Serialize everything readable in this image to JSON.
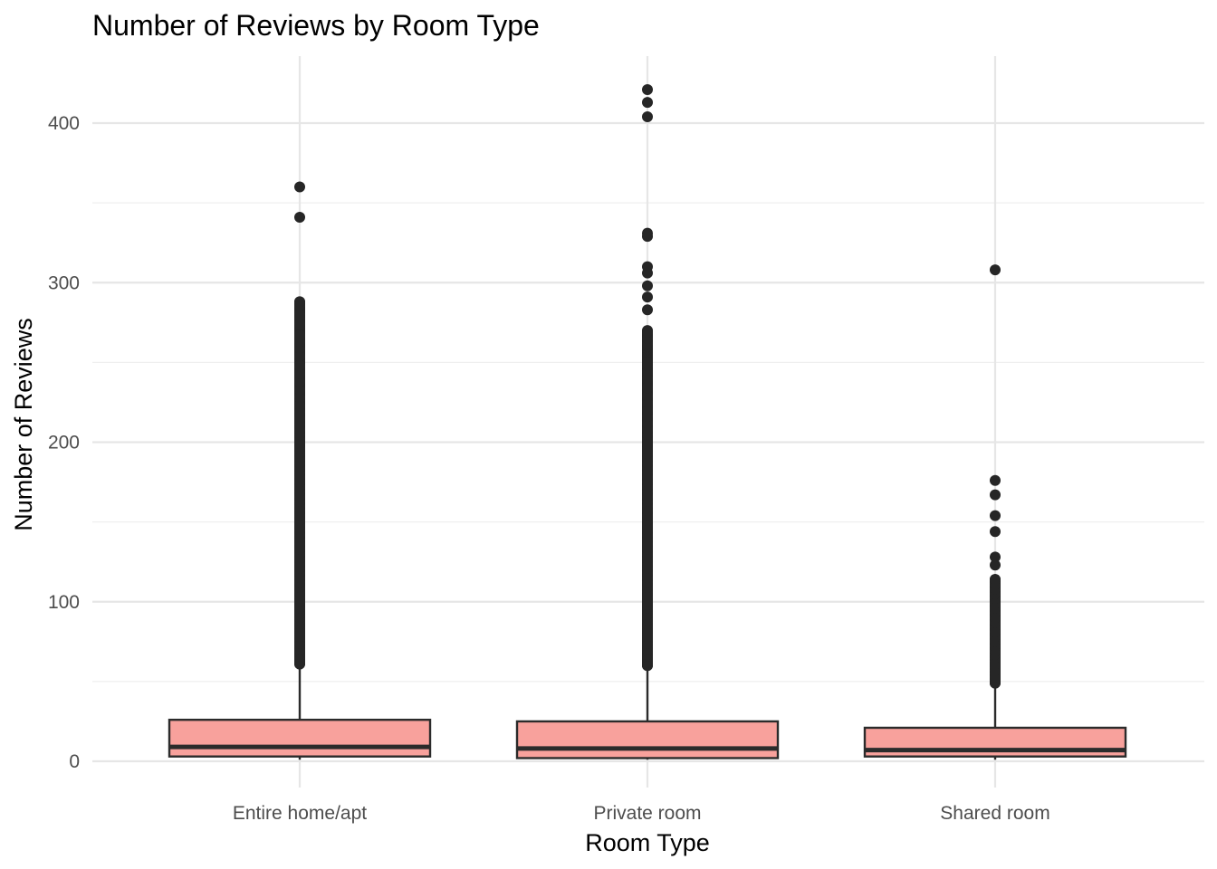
{
  "chart_data": {
    "type": "box",
    "title": "Number of Reviews by Room Type",
    "xlabel": "Room Type",
    "ylabel": "Number of Reviews",
    "ylim": [
      -23,
      442
    ],
    "yticks": [
      0,
      100,
      200,
      300,
      400
    ],
    "grid": true,
    "legend": "none",
    "colors": {
      "box_fill": "#f8a19c",
      "box_stroke": "#2b2b2b",
      "outlier": "#262626",
      "grid": "#e6e6e6"
    },
    "categories": [
      "Entire home/apt",
      "Private room",
      "Shared room"
    ],
    "boxes": [
      {
        "category": "Entire home/apt",
        "q1": 3,
        "median": 9,
        "q3": 26,
        "whisker_low": 1,
        "whisker_high": 60,
        "outlier_range": [
          61,
          288
        ],
        "outliers": [
          61,
          62,
          63,
          64,
          65,
          66,
          67,
          68,
          69,
          70,
          72,
          74,
          76,
          78,
          80,
          82,
          84,
          86,
          88,
          90,
          92,
          94,
          96,
          98,
          100,
          103,
          106,
          109,
          112,
          115,
          118,
          121,
          124,
          127,
          130,
          133,
          136,
          139,
          142,
          145,
          148,
          151,
          154,
          157,
          160,
          163,
          166,
          169,
          172,
          175,
          178,
          181,
          184,
          187,
          190,
          193,
          196,
          199,
          202,
          205,
          208,
          211,
          215,
          219,
          223,
          228,
          233,
          238,
          243,
          248,
          254,
          259,
          263,
          267,
          274,
          278,
          280,
          286,
          288,
          341,
          360
        ]
      },
      {
        "category": "Private room",
        "q1": 2,
        "median": 8,
        "q3": 25,
        "whisker_low": 1,
        "whisker_high": 59,
        "outlier_range": [
          60,
          270
        ],
        "outliers": [
          60,
          61,
          62,
          63,
          64,
          65,
          66,
          67,
          68,
          69,
          70,
          72,
          74,
          76,
          78,
          80,
          82,
          84,
          86,
          88,
          90,
          92,
          94,
          96,
          98,
          100,
          103,
          106,
          109,
          112,
          115,
          118,
          121,
          124,
          127,
          130,
          133,
          136,
          139,
          142,
          145,
          148,
          151,
          154,
          157,
          160,
          163,
          166,
          169,
          172,
          175,
          178,
          181,
          184,
          187,
          190,
          193,
          196,
          199,
          202,
          205,
          208,
          212,
          216,
          220,
          225,
          229,
          234,
          240,
          244,
          248,
          250,
          262,
          265,
          269,
          283,
          291,
          298,
          306,
          310,
          329,
          331,
          404,
          413,
          421
        ]
      },
      {
        "category": "Shared room",
        "q1": 3,
        "median": 7,
        "q3": 21,
        "whisker_low": 1,
        "whisker_high": 47,
        "outlier_range": [
          49,
          114
        ],
        "outliers": [
          49,
          51,
          53,
          55,
          57,
          59,
          61,
          63,
          65,
          67,
          69,
          72,
          75,
          78,
          81,
          84,
          87,
          90,
          93,
          96,
          99,
          102,
          105,
          108,
          111,
          114,
          123,
          128,
          144,
          154,
          167,
          176,
          308
        ]
      }
    ]
  }
}
